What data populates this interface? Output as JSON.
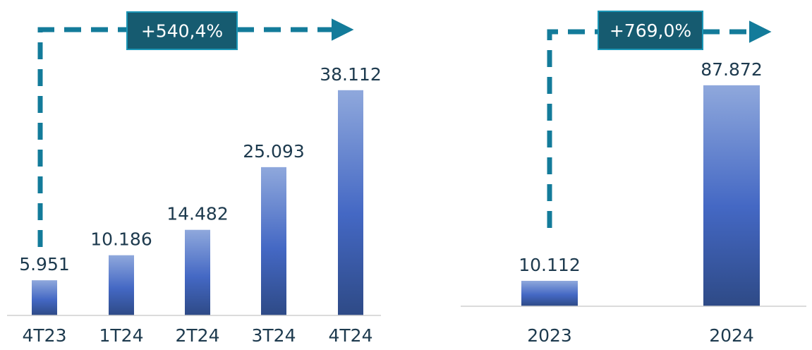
{
  "chart_data": [
    {
      "type": "bar",
      "categories": [
        "4T23",
        "1T24",
        "2T24",
        "3T24",
        "4T24"
      ],
      "values": [
        5951,
        10186,
        14482,
        25093,
        38112
      ],
      "value_labels": [
        "5.951",
        "10.186",
        "14.482",
        "25.093",
        "38.112"
      ],
      "growth_label": "+540,4%",
      "title": "",
      "xlabel": "",
      "ylabel": "",
      "ylim": [
        0,
        40000
      ],
      "grid": false,
      "legend": "none"
    },
    {
      "type": "bar",
      "categories": [
        "2023",
        "2024"
      ],
      "values": [
        10112,
        87872
      ],
      "value_labels": [
        "10.112",
        "87.872"
      ],
      "growth_label": "+769,0%",
      "title": "",
      "xlabel": "",
      "ylabel": "",
      "ylim": [
        0,
        94000
      ],
      "grid": false,
      "legend": "none"
    }
  ],
  "colors": {
    "bar_top": "#8fa8dc",
    "bar_mid": "#4468c4",
    "bar_bottom": "#2e4a86",
    "arrow": "#137b9a",
    "growth_box_fill": "#165b70",
    "growth_box_border": "#1b96b6",
    "text": "#1d3a4e",
    "axis": "#cfcfcf"
  }
}
